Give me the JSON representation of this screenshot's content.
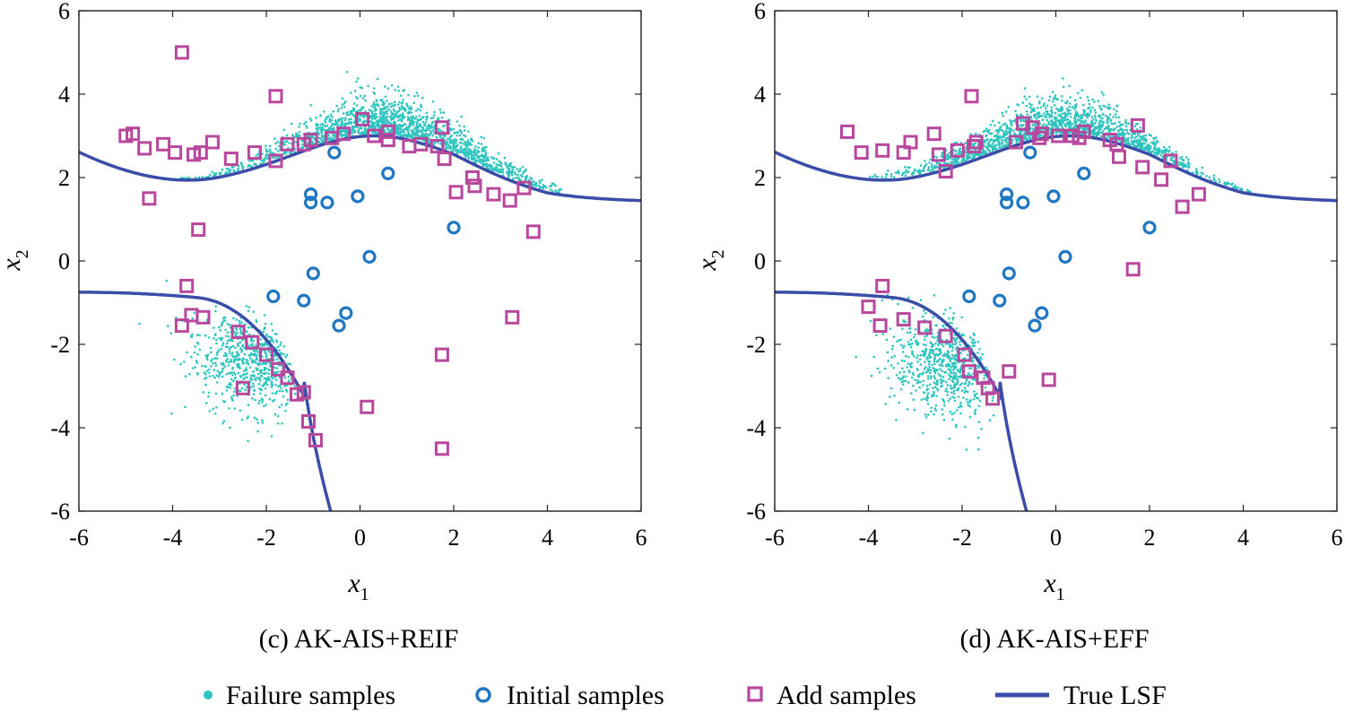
{
  "figure": {
    "legend": {
      "placement": "bottom",
      "items": [
        {
          "label": "Failure samples",
          "marker": "dot",
          "color": "#2ec4c0"
        },
        {
          "label": "Initial samples",
          "marker": "circle",
          "color": "#1f77c4"
        },
        {
          "label": "Add samples",
          "marker": "square",
          "color": "#b8479e"
        },
        {
          "label": "True LSF",
          "marker": "line",
          "color": "#3a4da8"
        }
      ]
    }
  },
  "colors": {
    "failure": "#2ec4c0",
    "initial": "#1f77c4",
    "add": "#b8479e",
    "lsf": "#3a4da8",
    "axis": "#222222"
  },
  "chart_data": [
    {
      "type": "scatter",
      "caption": "(c) AK-AIS+REIF",
      "xlabel": "x",
      "xlabel_sub": "1",
      "ylabel": "x",
      "ylabel_sub": "2",
      "xlim": [
        -6,
        6
      ],
      "ylim": [
        -6,
        6
      ],
      "xticks": [
        -6,
        -4,
        -2,
        0,
        2,
        4,
        6
      ],
      "yticks": [
        -6,
        -4,
        -2,
        0,
        2,
        4,
        6
      ],
      "grid": false,
      "series": [
        {
          "name": "Initial samples",
          "points": [
            [
              -0.55,
              2.6
            ],
            [
              0.6,
              2.1
            ],
            [
              -1.05,
              1.6
            ],
            [
              -1.05,
              1.4
            ],
            [
              -0.7,
              1.4
            ],
            [
              -0.05,
              1.55
            ],
            [
              2.0,
              0.8
            ],
            [
              0.2,
              0.1
            ],
            [
              -1.0,
              -0.3
            ],
            [
              -1.85,
              -0.85
            ],
            [
              -1.2,
              -0.95
            ],
            [
              -0.3,
              -1.25
            ],
            [
              -0.45,
              -1.55
            ]
          ]
        },
        {
          "name": "Add samples",
          "points": [
            [
              -3.8,
              5.0
            ],
            [
              -1.8,
              3.95
            ],
            [
              -5.0,
              3.0
            ],
            [
              -4.85,
              3.05
            ],
            [
              -4.6,
              2.7
            ],
            [
              -4.2,
              2.8
            ],
            [
              -3.95,
              2.6
            ],
            [
              -3.55,
              2.55
            ],
            [
              -3.4,
              2.6
            ],
            [
              -3.15,
              2.85
            ],
            [
              -2.75,
              2.45
            ],
            [
              -2.25,
              2.6
            ],
            [
              -1.8,
              2.4
            ],
            [
              -1.55,
              2.8
            ],
            [
              -1.2,
              2.8
            ],
            [
              -1.05,
              2.9
            ],
            [
              -0.6,
              2.95
            ],
            [
              -0.35,
              3.05
            ],
            [
              0.05,
              3.4
            ],
            [
              0.3,
              3.0
            ],
            [
              0.6,
              2.9
            ],
            [
              0.6,
              3.1
            ],
            [
              1.05,
              2.75
            ],
            [
              1.3,
              2.8
            ],
            [
              1.65,
              2.75
            ],
            [
              1.75,
              3.2
            ],
            [
              1.8,
              2.45
            ],
            [
              2.4,
              2.0
            ],
            [
              2.45,
              1.8
            ],
            [
              2.05,
              1.65
            ],
            [
              2.85,
              1.6
            ],
            [
              3.2,
              1.45
            ],
            [
              3.5,
              1.75
            ],
            [
              3.7,
              0.7
            ],
            [
              -4.5,
              1.5
            ],
            [
              -3.45,
              0.75
            ],
            [
              -3.7,
              -0.6
            ],
            [
              -3.6,
              -1.3
            ],
            [
              -3.35,
              -1.35
            ],
            [
              -3.8,
              -1.55
            ],
            [
              -2.6,
              -1.7
            ],
            [
              -2.3,
              -1.95
            ],
            [
              -2.0,
              -2.25
            ],
            [
              -1.75,
              -2.6
            ],
            [
              -1.55,
              -2.8
            ],
            [
              -1.35,
              -3.2
            ],
            [
              -1.2,
              -3.15
            ],
            [
              -2.5,
              -3.05
            ],
            [
              -1.1,
              -3.85
            ],
            [
              -0.95,
              -4.3
            ],
            [
              0.15,
              -3.5
            ],
            [
              1.75,
              -2.25
            ],
            [
              1.75,
              -4.5
            ],
            [
              3.25,
              -1.35
            ]
          ]
        },
        {
          "name": "Failure samples",
          "clusters": [
            {
              "center": [
                0.7,
                3.1
              ],
              "spread": [
                1.7,
                0.5
              ],
              "curve": "upper",
              "count": 1600
            },
            {
              "center": [
                -2.3,
                -2.4
              ],
              "spread": [
                0.6,
                0.6
              ],
              "tilt": 0.6,
              "count": 750
            }
          ]
        },
        {
          "name": "True LSF",
          "curves": [
            "upper",
            "lower"
          ]
        }
      ]
    },
    {
      "type": "scatter",
      "caption": "(d) AK-AIS+EFF",
      "xlabel": "x",
      "xlabel_sub": "1",
      "ylabel": "x",
      "ylabel_sub": "2",
      "xlim": [
        -6,
        6
      ],
      "ylim": [
        -6,
        6
      ],
      "xticks": [
        -6,
        -4,
        -2,
        0,
        2,
        4,
        6
      ],
      "yticks": [
        -6,
        -4,
        -2,
        0,
        2,
        4,
        6
      ],
      "grid": false,
      "series": [
        {
          "name": "Initial samples",
          "points": [
            [
              -0.55,
              2.6
            ],
            [
              0.6,
              2.1
            ],
            [
              -1.05,
              1.6
            ],
            [
              -1.05,
              1.4
            ],
            [
              -0.7,
              1.4
            ],
            [
              -0.05,
              1.55
            ],
            [
              2.0,
              0.8
            ],
            [
              0.2,
              0.1
            ],
            [
              -1.0,
              -0.3
            ],
            [
              -1.85,
              -0.85
            ],
            [
              -1.2,
              -0.95
            ],
            [
              -0.3,
              -1.25
            ],
            [
              -0.45,
              -1.55
            ]
          ]
        },
        {
          "name": "Add samples",
          "points": [
            [
              -1.8,
              3.95
            ],
            [
              -4.45,
              3.1
            ],
            [
              -4.15,
              2.6
            ],
            [
              -3.7,
              2.65
            ],
            [
              -3.25,
              2.6
            ],
            [
              -3.1,
              2.85
            ],
            [
              -2.6,
              3.05
            ],
            [
              -2.5,
              2.55
            ],
            [
              -2.35,
              2.15
            ],
            [
              -2.1,
              2.65
            ],
            [
              -1.75,
              2.75
            ],
            [
              -1.7,
              2.85
            ],
            [
              -0.85,
              2.85
            ],
            [
              -0.7,
              3.3
            ],
            [
              -0.5,
              3.2
            ],
            [
              -0.35,
              2.95
            ],
            [
              -0.3,
              3.05
            ],
            [
              0.05,
              3.0
            ],
            [
              0.35,
              3.0
            ],
            [
              0.5,
              2.95
            ],
            [
              0.6,
              3.1
            ],
            [
              1.15,
              2.9
            ],
            [
              1.3,
              2.8
            ],
            [
              1.35,
              2.5
            ],
            [
              1.75,
              3.25
            ],
            [
              1.85,
              2.25
            ],
            [
              2.25,
              1.95
            ],
            [
              2.45,
              2.4
            ],
            [
              2.7,
              1.3
            ],
            [
              3.05,
              1.6
            ],
            [
              1.65,
              -0.2
            ],
            [
              -3.7,
              -0.6
            ],
            [
              -4.0,
              -1.1
            ],
            [
              -3.75,
              -1.55
            ],
            [
              -3.25,
              -1.4
            ],
            [
              -2.8,
              -1.6
            ],
            [
              -2.35,
              -1.8
            ],
            [
              -1.95,
              -2.25
            ],
            [
              -1.85,
              -2.65
            ],
            [
              -1.55,
              -2.8
            ],
            [
              -1.45,
              -3.05
            ],
            [
              -1.35,
              -3.3
            ],
            [
              -1.0,
              -2.65
            ],
            [
              -0.15,
              -2.85
            ]
          ]
        },
        {
          "name": "Failure samples",
          "clusters": [
            {
              "center": [
                0.0,
                3.2
              ],
              "spread": [
                1.6,
                0.45
              ],
              "curve": "upper",
              "count": 1500
            },
            {
              "center": [
                -2.3,
                -2.5
              ],
              "spread": [
                0.6,
                0.6
              ],
              "tilt": 0.6,
              "count": 750
            }
          ]
        },
        {
          "name": "True LSF",
          "curves": [
            "upper",
            "lower"
          ]
        }
      ]
    }
  ]
}
